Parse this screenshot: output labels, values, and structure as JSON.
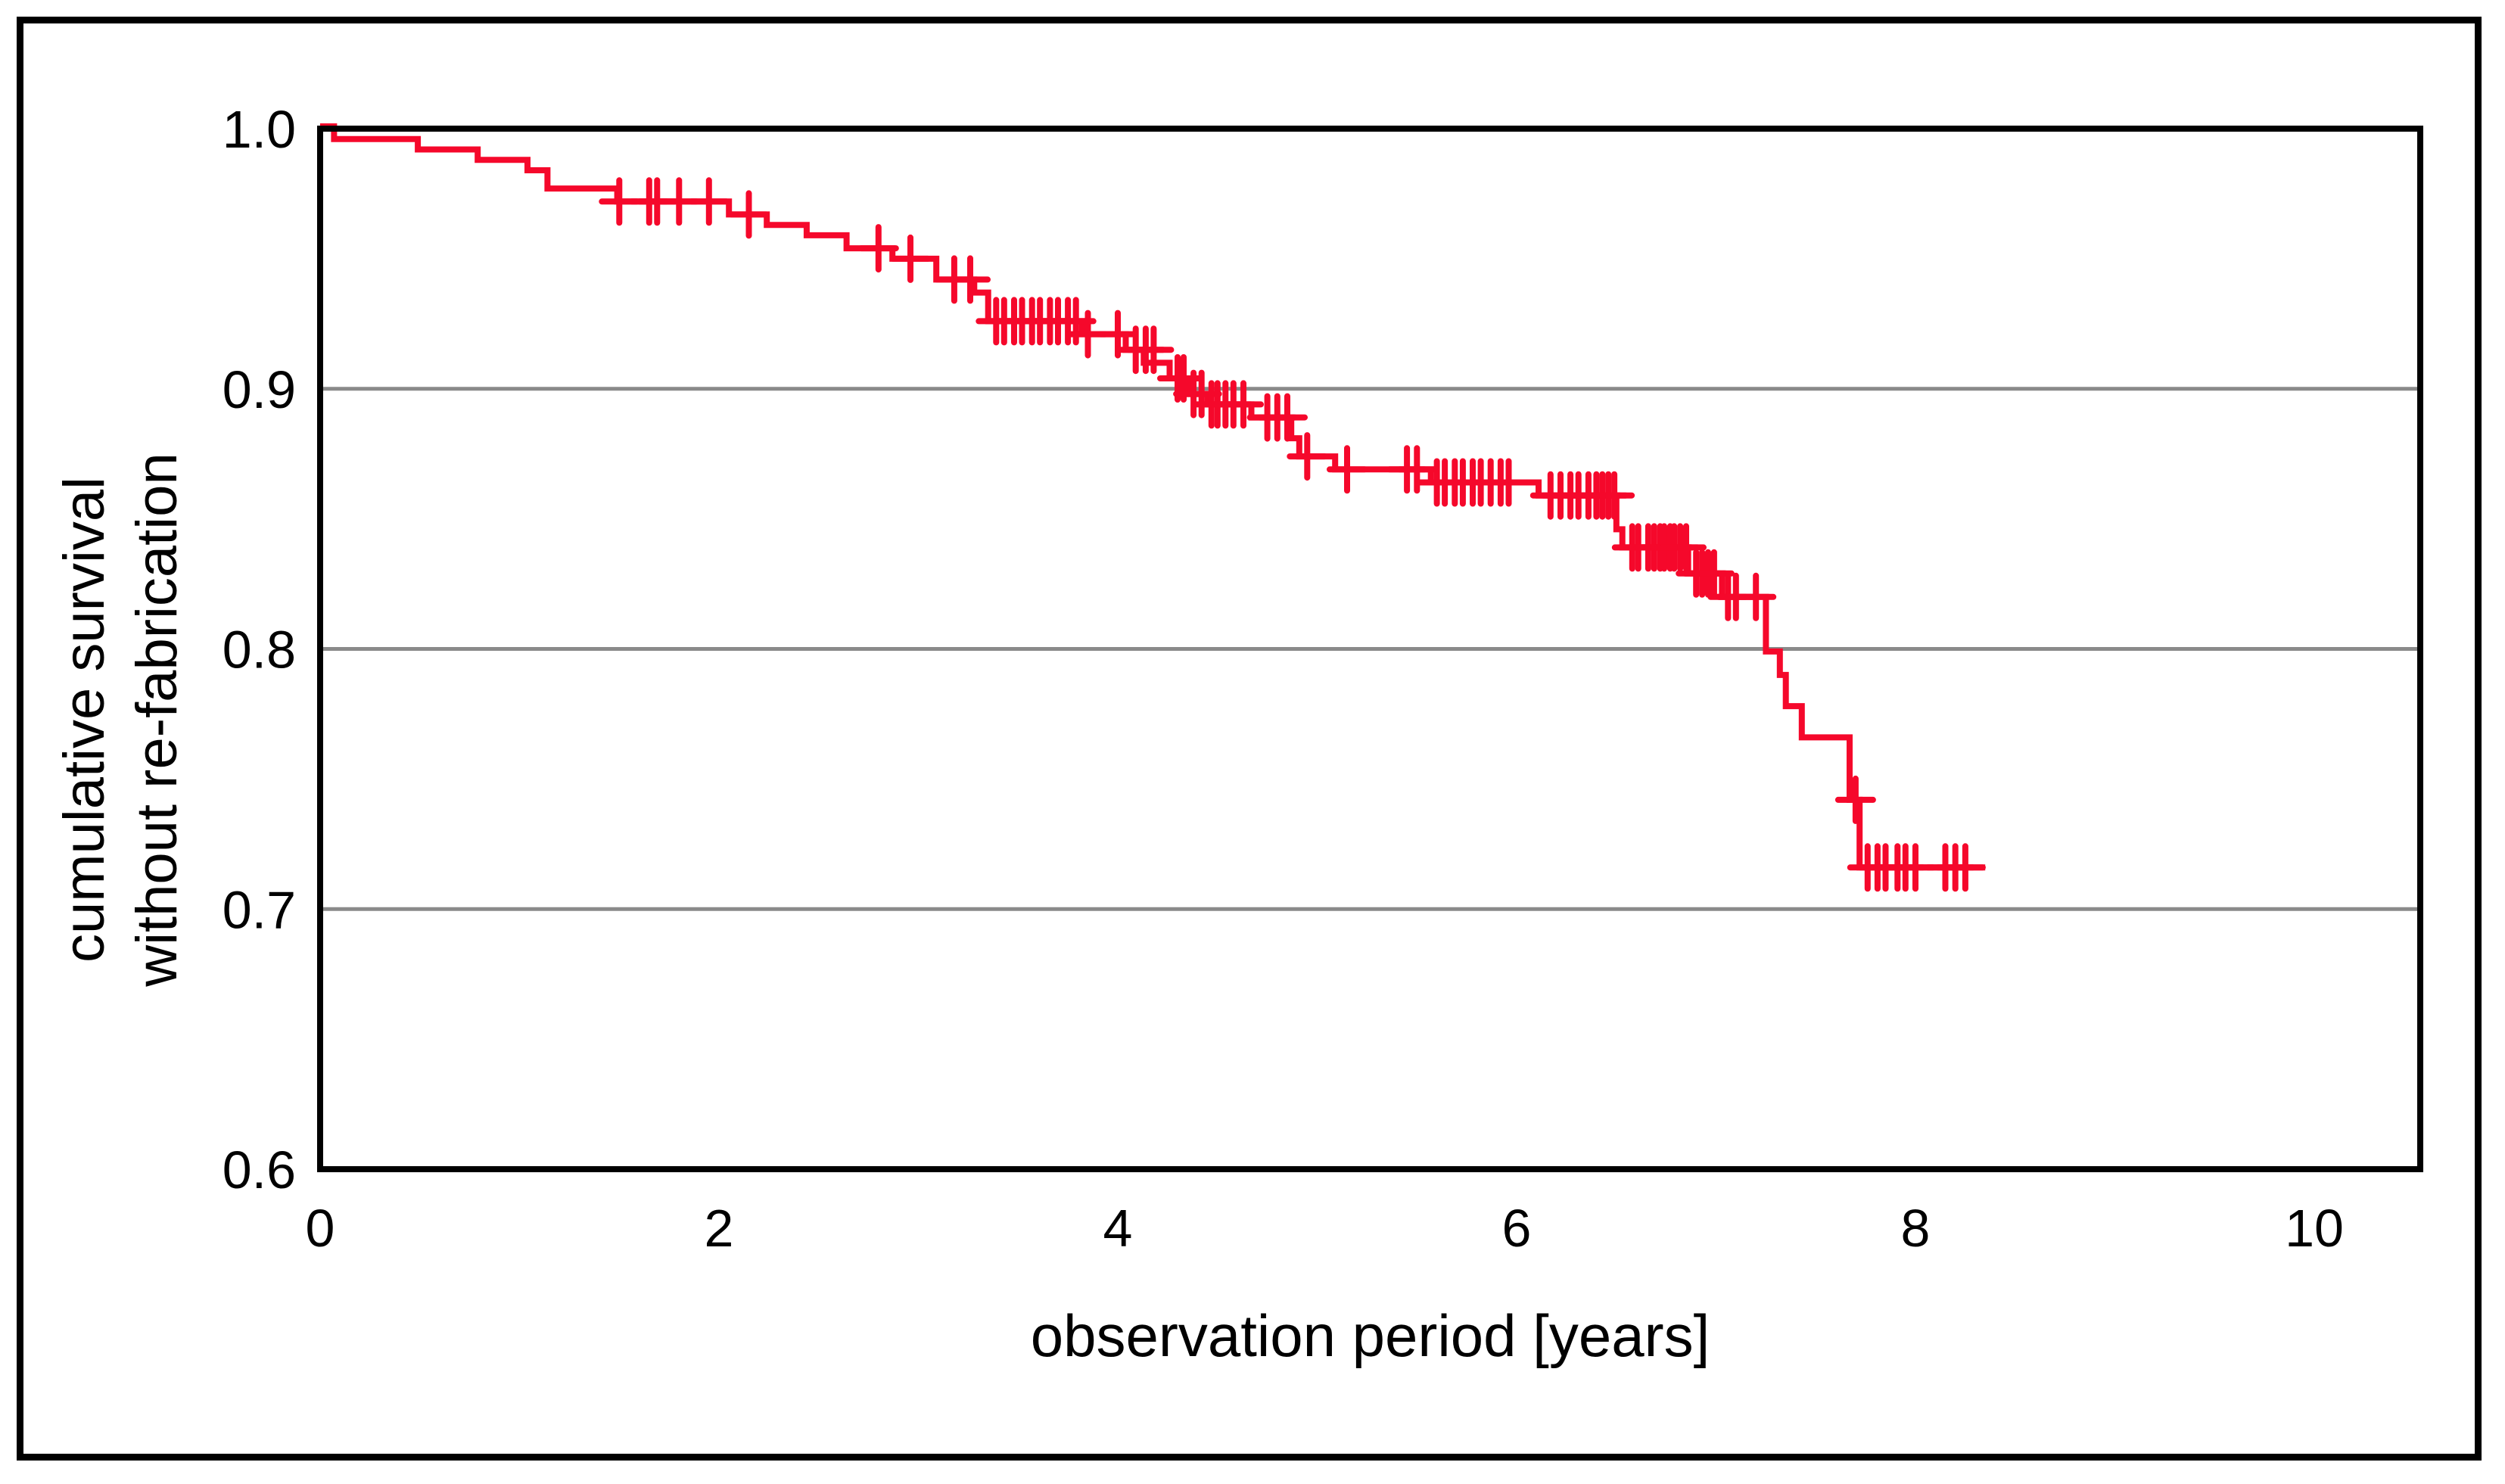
{
  "window": {
    "background": "#ffffff",
    "outer_border_color": "#000000"
  },
  "chart_data": {
    "type": "line",
    "subtype": "kaplan-meier-step-function",
    "title": "",
    "xlabel": "observation period [years]",
    "ylabel_line1": "cumulative survival",
    "ylabel_line2": "without re-fabrication",
    "xlim": [
      0,
      10.53
    ],
    "ylim": [
      0.6,
      1.0
    ],
    "grid_on": true,
    "gridlines_y": [
      0.9,
      0.8,
      0.7
    ],
    "legend": "none",
    "x_ticks": [
      {
        "value": 0,
        "label": "0"
      },
      {
        "value": 2,
        "label": "2"
      },
      {
        "value": 4,
        "label": "4"
      },
      {
        "value": 6,
        "label": "6"
      },
      {
        "value": 8,
        "label": "8"
      },
      {
        "value": 10,
        "label": "10"
      }
    ],
    "y_ticks": [
      {
        "value": 1.0,
        "label": "1.0"
      },
      {
        "value": 0.9,
        "label": "0.9"
      },
      {
        "value": 0.8,
        "label": "0.8"
      },
      {
        "value": 0.7,
        "label": "0.7"
      },
      {
        "value": 0.6,
        "label": "0.6"
      }
    ],
    "colors": {
      "curve": "#f5082b",
      "grid": "#8a8a8a",
      "axis": "#000000"
    },
    "series": [
      {
        "name": "cumulative survival without re-fabrication",
        "start": [
          0,
          1.0
        ],
        "end_time": 8.35,
        "steps": [
          [
            0.07,
            0.996
          ],
          [
            0.49,
            0.992
          ],
          [
            0.79,
            0.988
          ],
          [
            1.04,
            0.984
          ],
          [
            1.14,
            0.977
          ],
          [
            1.49,
            0.972
          ],
          [
            2.05,
            0.967
          ],
          [
            2.24,
            0.963
          ],
          [
            2.44,
            0.959
          ],
          [
            2.64,
            0.954
          ],
          [
            2.87,
            0.95
          ],
          [
            3.09,
            0.942
          ],
          [
            3.28,
            0.937
          ],
          [
            3.35,
            0.926
          ],
          [
            3.82,
            0.921
          ],
          [
            4.04,
            0.915
          ],
          [
            4.13,
            0.91
          ],
          [
            4.26,
            0.904
          ],
          [
            4.36,
            0.898
          ],
          [
            4.45,
            0.894
          ],
          [
            4.67,
            0.889
          ],
          [
            4.87,
            0.881
          ],
          [
            4.91,
            0.874
          ],
          [
            5.09,
            0.869
          ],
          [
            5.57,
            0.864
          ],
          [
            6.11,
            0.859
          ],
          [
            6.5,
            0.846
          ],
          [
            6.53,
            0.839
          ],
          [
            6.86,
            0.829
          ],
          [
            7.03,
            0.82
          ],
          [
            7.25,
            0.799
          ],
          [
            7.32,
            0.79
          ],
          [
            7.35,
            0.778
          ],
          [
            7.43,
            0.766
          ],
          [
            7.67,
            0.742
          ],
          [
            7.72,
            0.716
          ]
        ],
        "censors": [
          [
            1.5,
            0.972
          ],
          [
            1.65,
            0.972
          ],
          [
            1.69,
            0.972
          ],
          [
            1.8,
            0.972
          ],
          [
            1.95,
            0.972
          ],
          [
            2.15,
            0.967
          ],
          [
            2.8,
            0.954
          ],
          [
            2.96,
            0.95
          ],
          [
            3.18,
            0.942
          ],
          [
            3.26,
            0.942
          ],
          [
            3.39,
            0.926
          ],
          [
            3.43,
            0.926
          ],
          [
            3.48,
            0.926
          ],
          [
            3.52,
            0.926
          ],
          [
            3.57,
            0.926
          ],
          [
            3.61,
            0.926
          ],
          [
            3.66,
            0.926
          ],
          [
            3.7,
            0.926
          ],
          [
            3.75,
            0.926
          ],
          [
            3.79,
            0.926
          ],
          [
            3.85,
            0.921
          ],
          [
            4.0,
            0.921
          ],
          [
            4.09,
            0.915
          ],
          [
            4.14,
            0.915
          ],
          [
            4.18,
            0.915
          ],
          [
            4.3,
            0.904
          ],
          [
            4.33,
            0.904
          ],
          [
            4.38,
            0.898
          ],
          [
            4.42,
            0.898
          ],
          [
            4.47,
            0.894
          ],
          [
            4.5,
            0.894
          ],
          [
            4.54,
            0.894
          ],
          [
            4.58,
            0.894
          ],
          [
            4.63,
            0.894
          ],
          [
            4.75,
            0.889
          ],
          [
            4.8,
            0.889
          ],
          [
            4.85,
            0.889
          ],
          [
            4.95,
            0.874
          ],
          [
            5.15,
            0.869
          ],
          [
            5.45,
            0.869
          ],
          [
            5.5,
            0.869
          ],
          [
            5.6,
            0.864
          ],
          [
            5.64,
            0.864
          ],
          [
            5.69,
            0.864
          ],
          [
            5.73,
            0.864
          ],
          [
            5.78,
            0.864
          ],
          [
            5.82,
            0.864
          ],
          [
            5.87,
            0.864
          ],
          [
            5.92,
            0.864
          ],
          [
            5.96,
            0.864
          ],
          [
            6.17,
            0.859
          ],
          [
            6.22,
            0.859
          ],
          [
            6.27,
            0.859
          ],
          [
            6.31,
            0.859
          ],
          [
            6.36,
            0.859
          ],
          [
            6.4,
            0.859
          ],
          [
            6.43,
            0.859
          ],
          [
            6.46,
            0.859
          ],
          [
            6.49,
            0.859
          ],
          [
            6.58,
            0.839
          ],
          [
            6.61,
            0.839
          ],
          [
            6.66,
            0.839
          ],
          [
            6.69,
            0.839
          ],
          [
            6.72,
            0.839
          ],
          [
            6.74,
            0.839
          ],
          [
            6.77,
            0.839
          ],
          [
            6.79,
            0.839
          ],
          [
            6.82,
            0.839
          ],
          [
            6.85,
            0.839
          ],
          [
            6.9,
            0.829
          ],
          [
            6.93,
            0.829
          ],
          [
            6.96,
            0.829
          ],
          [
            6.99,
            0.829
          ],
          [
            7.06,
            0.82
          ],
          [
            7.1,
            0.82
          ],
          [
            7.2,
            0.82
          ],
          [
            7.7,
            0.742
          ],
          [
            7.76,
            0.716
          ],
          [
            7.81,
            0.716
          ],
          [
            7.85,
            0.716
          ],
          [
            7.91,
            0.716
          ],
          [
            7.95,
            0.716
          ],
          [
            8.0,
            0.716
          ],
          [
            8.15,
            0.716
          ],
          [
            8.2,
            0.716
          ],
          [
            8.25,
            0.716
          ]
        ]
      }
    ]
  }
}
